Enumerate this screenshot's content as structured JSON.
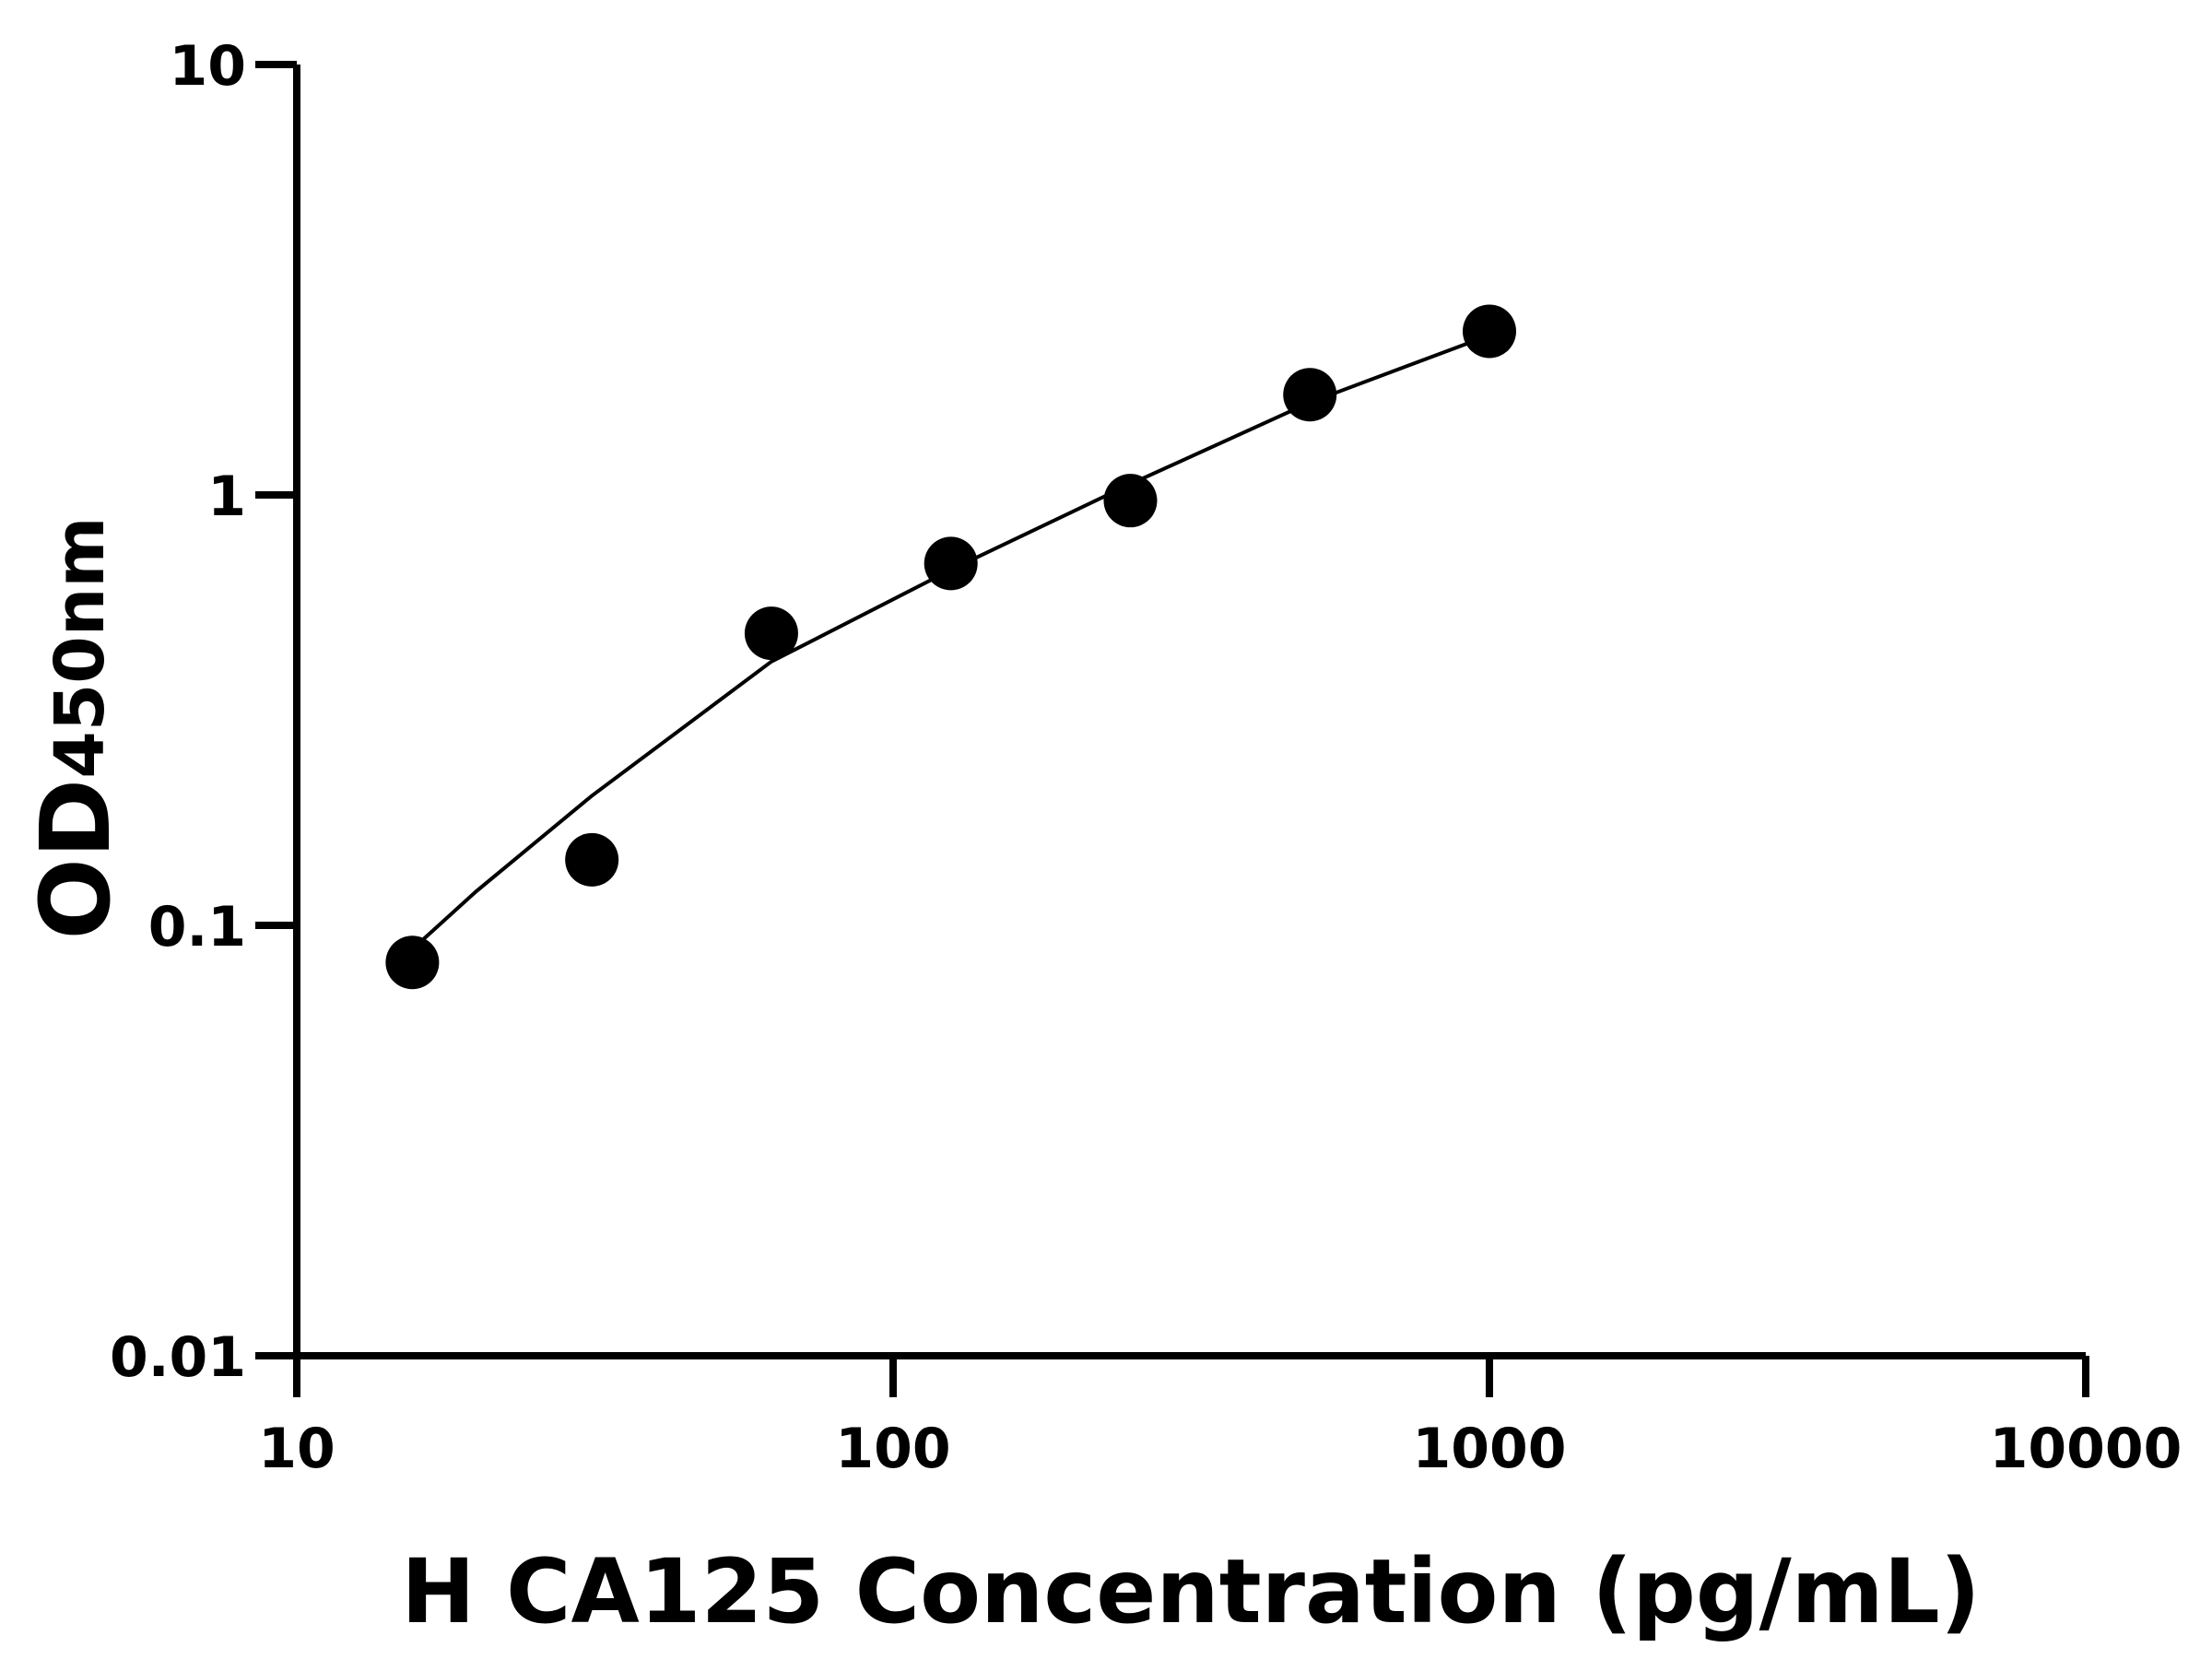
{
  "chart_data": {
    "type": "scatter",
    "xlabel": "H CA125 Concentration (pg/mL)",
    "ylabel": "OD",
    "ylabel_sub": "450nm",
    "xscale": "log",
    "yscale": "log",
    "xlim": [
      10,
      10000
    ],
    "xticks": [
      10,
      100,
      1000,
      10000
    ],
    "ylim": [
      0.01,
      10
    ],
    "yticks": [
      0.01,
      0.1,
      1,
      10
    ],
    "series": [
      {
        "type": "scatter",
        "color": "#000000",
        "x": [
          15.625,
          31.25,
          62.5,
          125,
          250,
          500,
          1000
        ],
        "values": [
          0.082,
          0.142,
          0.477,
          0.693,
          0.97,
          1.71,
          2.4
        ]
      },
      {
        "type": "line",
        "color": "#000000",
        "x": [
          15.625,
          20,
          31.25,
          62.5,
          125,
          250,
          500,
          1000
        ],
        "values": [
          0.088,
          0.12,
          0.2,
          0.41,
          0.67,
          1.06,
          1.64,
          2.35
        ]
      }
    ]
  }
}
